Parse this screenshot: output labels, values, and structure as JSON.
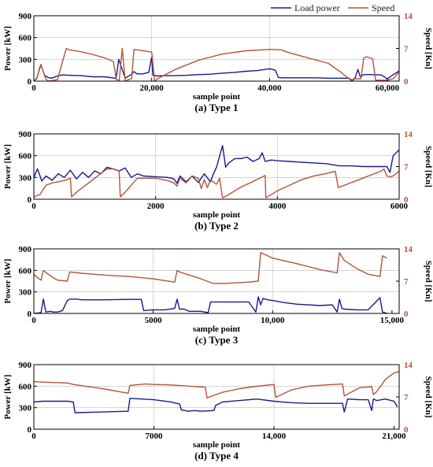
{
  "colors": {
    "load_power": "#1a1a8c",
    "speed": "#b5543a",
    "grid": "#bdbdbd"
  },
  "legend": {
    "load_power": "Load power",
    "speed": "Speed"
  },
  "chart_data": [
    {
      "type": "line",
      "caption": "(a) Type 1",
      "xlabel": "sample point",
      "ylabel": "Power [kW]",
      "y2label": "Speed [Kn]",
      "xlim": [
        0,
        62000
      ],
      "ylim": [
        0,
        900
      ],
      "y2lim": [
        0,
        14
      ],
      "xticks": [
        0,
        20000,
        40000,
        60000
      ],
      "xtick_labels": [
        "0",
        "20,000",
        "40,000",
        "60,000"
      ],
      "yticks": [
        0,
        300,
        600,
        900
      ],
      "y2ticks": [
        0,
        7,
        14
      ],
      "grid": true,
      "series": [
        {
          "name": "Load power",
          "axis": "left",
          "x": [
            0,
            500,
            1200,
            1800,
            2400,
            3000,
            4000,
            4500,
            5000,
            6000,
            8000,
            10000,
            12000,
            13800,
            14000,
            14400,
            15500,
            16500,
            17000,
            17500,
            18500,
            19500,
            20000,
            20200,
            21000,
            22000,
            24000,
            26000,
            28000,
            30000,
            32000,
            34000,
            36000,
            38000,
            40000,
            41000,
            41500,
            42000,
            45000,
            48000,
            50000,
            52000,
            53500,
            54000,
            54500,
            55000,
            55400,
            56000,
            57000,
            59000,
            60000,
            61000,
            62000
          ],
          "y": [
            0,
            40,
            230,
            80,
            50,
            40,
            70,
            80,
            85,
            80,
            75,
            60,
            60,
            40,
            60,
            300,
            40,
            90,
            130,
            100,
            100,
            120,
            330,
            80,
            70,
            75,
            75,
            80,
            90,
            95,
            110,
            120,
            135,
            145,
            170,
            150,
            50,
            45,
            45,
            45,
            40,
            40,
            40,
            10,
            40,
            160,
            60,
            90,
            90,
            85,
            30,
            90,
            140
          ]
        },
        {
          "name": "Speed",
          "axis": "right",
          "x": [
            0,
            500,
            1000,
            1200,
            2000,
            2500,
            4000,
            5500,
            6000,
            8000,
            10000,
            12000,
            13500,
            14000,
            14500,
            15000,
            15500,
            16000,
            16600,
            17000,
            20000,
            20500,
            21000,
            24000,
            28000,
            32000,
            36000,
            40000,
            42000,
            43000,
            45000,
            50000,
            52000,
            53500,
            54000,
            54500,
            55500,
            56000,
            56500,
            57500,
            58000,
            59000,
            60000,
            61000,
            62000
          ],
          "y": [
            0,
            0.5,
            3,
            3.5,
            0.5,
            0,
            0.3,
            7,
            6.7,
            6.3,
            5.7,
            5,
            4.2,
            0.3,
            0.2,
            7,
            0,
            0.3,
            0.5,
            6.8,
            6.2,
            0,
            0.5,
            2.5,
            4.5,
            5.8,
            6.5,
            6.8,
            6.7,
            6.2,
            5.5,
            3.8,
            2,
            0.5,
            0,
            0.5,
            0.5,
            5,
            5.2,
            4.8,
            0.2,
            0.2,
            0.2,
            0.5,
            2
          ]
        }
      ]
    },
    {
      "type": "line",
      "caption": "(b)  Type 2",
      "xlabel": "sample point",
      "ylabel": "Power [kW]",
      "y2label": "Speed [Kn]",
      "xlim": [
        0,
        6000
      ],
      "ylim": [
        0,
        900
      ],
      "y2lim": [
        0,
        14
      ],
      "xticks": [
        0,
        2000,
        4000,
        6000
      ],
      "xtick_labels": [
        "0",
        "2000",
        "4000",
        "6000"
      ],
      "yticks": [
        0,
        300,
        600,
        900
      ],
      "y2ticks": [
        0,
        7,
        14
      ],
      "grid": true,
      "series": [
        {
          "name": "Load power",
          "axis": "left",
          "x": [
            0,
            60,
            130,
            200,
            300,
            400,
            500,
            600,
            700,
            800,
            900,
            1000,
            1100,
            1200,
            1300,
            1400,
            1500,
            1600,
            1700,
            1800,
            2000,
            2200,
            2300,
            2350,
            2400,
            2500,
            2600,
            2700,
            2800,
            2900,
            2950,
            3000,
            3100,
            3150,
            3200,
            3300,
            3400,
            3500,
            3600,
            3700,
            3750,
            3800,
            3900,
            4000,
            4200,
            4400,
            4600,
            4800,
            4950,
            5000,
            5200,
            5400,
            5600,
            5800,
            5850,
            5900,
            6000
          ],
          "y": [
            300,
            420,
            250,
            320,
            260,
            350,
            300,
            400,
            280,
            370,
            300,
            390,
            350,
            440,
            420,
            390,
            430,
            300,
            350,
            320,
            310,
            300,
            280,
            220,
            320,
            240,
            320,
            230,
            350,
            240,
            350,
            440,
            740,
            440,
            500,
            560,
            560,
            580,
            520,
            560,
            640,
            520,
            540,
            530,
            520,
            510,
            500,
            490,
            470,
            460,
            460,
            450,
            450,
            450,
            370,
            600,
            680
          ]
        },
        {
          "name": "Speed",
          "axis": "right",
          "x": [
            0,
            100,
            200,
            300,
            500,
            600,
            620,
            700,
            800,
            900,
            1000,
            1100,
            1200,
            1300,
            1400,
            1420,
            1500,
            1600,
            1700,
            2000,
            2200,
            2300,
            2350,
            2400,
            2500,
            2600,
            2700,
            2750,
            2800,
            2850,
            2900,
            3000,
            3050,
            3100,
            3200,
            3300,
            3400,
            3600,
            3800,
            3810,
            4000,
            4200,
            4400,
            4600,
            4800,
            4950,
            5000,
            5200,
            5400,
            5600,
            5700,
            5750,
            5800,
            5850,
            5900,
            6000
          ],
          "y": [
            0.5,
            1,
            3,
            3.5,
            4,
            4.5,
            0.5,
            1.5,
            2.5,
            3.5,
            4.5,
            5.5,
            6.5,
            6.5,
            6,
            0.5,
            1.5,
            3,
            4.5,
            4.5,
            4,
            3.5,
            2.8,
            4.5,
            3.5,
            5,
            4.5,
            2.3,
            4.2,
            2.5,
            4.2,
            3.2,
            4.5,
            0.3,
            1,
            1.8,
            2.6,
            3.8,
            5.1,
            0.3,
            1.8,
            3,
            4.2,
            5,
            5.5,
            6,
            2.5,
            3.5,
            4.5,
            5.5,
            6,
            6.5,
            5,
            4.8,
            5,
            6
          ]
        }
      ]
    },
    {
      "type": "line",
      "caption": "(c)  Type 3",
      "xlabel": "sample point",
      "ylabel": "Power [kW]",
      "y2label": "Speed [Kn]",
      "xlim": [
        0,
        15300
      ],
      "ylim": [
        0,
        900
      ],
      "y2lim": [
        0,
        14
      ],
      "xticks": [
        0,
        5000,
        10000,
        15000
      ],
      "xtick_labels": [
        "0",
        "5000",
        "10,000",
        "15,000"
      ],
      "yticks": [
        0,
        300,
        600,
        900
      ],
      "y2ticks": [
        0,
        7,
        14
      ],
      "grid": true,
      "series": [
        {
          "name": "Load power",
          "axis": "left",
          "x": [
            0,
            300,
            400,
            500,
            700,
            800,
            1000,
            1200,
            1400,
            1500,
            1800,
            2000,
            3000,
            4000,
            4500,
            4600,
            5000,
            5500,
            5900,
            6000,
            6100,
            6300,
            6500,
            7000,
            7300,
            7400,
            8000,
            8500,
            9000,
            9300,
            9400,
            9500,
            9600,
            9800,
            10000,
            10500,
            11000,
            12000,
            12500,
            12700,
            12800,
            12900,
            13000,
            13500,
            14000,
            14500,
            14600,
            14800
          ],
          "y": [
            0,
            10,
            200,
            20,
            30,
            20,
            20,
            40,
            180,
            200,
            200,
            190,
            190,
            195,
            195,
            40,
            50,
            50,
            70,
            200,
            60,
            60,
            30,
            30,
            10,
            160,
            160,
            160,
            160,
            20,
            230,
            120,
            210,
            190,
            180,
            150,
            130,
            110,
            120,
            20,
            200,
            70,
            60,
            50,
            50,
            220,
            20,
            0
          ]
        },
        {
          "name": "Speed",
          "axis": "right",
          "x": [
            0,
            100,
            300,
            400,
            600,
            800,
            900,
            1000,
            1400,
            1500,
            2000,
            3000,
            4000,
            5000,
            5900,
            6000,
            6100,
            7000,
            7500,
            8000,
            9000,
            9400,
            9500,
            10000,
            11000,
            12000,
            12700,
            12800,
            13000,
            13500,
            14000,
            14500,
            14600,
            14800
          ],
          "y": [
            8.5,
            8,
            7.2,
            9.3,
            8.5,
            7.8,
            7.5,
            7.2,
            7,
            9,
            8.7,
            8.3,
            8,
            7.5,
            6.8,
            9.3,
            9,
            7.5,
            6.5,
            6.5,
            6.8,
            7,
            13.2,
            12,
            10.8,
            9.5,
            8.8,
            13.2,
            11.5,
            9.8,
            8.5,
            8,
            12.5,
            12
          ]
        }
      ]
    },
    {
      "type": "line",
      "caption": "(d)  Type 4",
      "xlabel": "sample point",
      "ylabel": "Power [kW]",
      "y2label": "Speed [Kn]",
      "xlim": [
        0,
        21300
      ],
      "ylim": [
        0,
        900
      ],
      "y2lim": [
        0,
        14
      ],
      "xticks": [
        0,
        7000,
        14000,
        21000
      ],
      "xtick_labels": [
        "0",
        "7000",
        "14,000",
        "21,000"
      ],
      "yticks": [
        0,
        300,
        600,
        900
      ],
      "y2ticks": [
        0,
        7,
        14
      ],
      "grid": true,
      "series": [
        {
          "name": "Load power",
          "axis": "left",
          "x": [
            0,
            500,
            2000,
            2300,
            2400,
            4000,
            5500,
            5600,
            7000,
            8000,
            8500,
            8600,
            9000,
            9400,
            9700,
            10500,
            10600,
            11000,
            12000,
            13000,
            14000,
            14500,
            15000,
            16000,
            17000,
            18000,
            18100,
            18300,
            19000,
            19500,
            19700,
            19800,
            20000,
            20500,
            21000,
            21200
          ],
          "y": [
            380,
            390,
            390,
            380,
            230,
            240,
            250,
            430,
            410,
            380,
            350,
            270,
            250,
            260,
            250,
            260,
            330,
            380,
            400,
            420,
            390,
            380,
            370,
            360,
            360,
            360,
            240,
            420,
            410,
            410,
            260,
            420,
            400,
            420,
            390,
            310
          ]
        },
        {
          "name": "Speed",
          "axis": "right",
          "x": [
            0,
            2000,
            2300,
            4000,
            5500,
            5600,
            6500,
            7000,
            8000,
            10000,
            10100,
            11000,
            12000,
            13000,
            14000,
            14100,
            15000,
            16000,
            17000,
            18000,
            18100,
            19000,
            19700,
            19800,
            20000,
            20500,
            21000,
            21300
          ],
          "y": [
            10.3,
            10,
            9.7,
            8.8,
            7.8,
            9.5,
            9.8,
            9.7,
            9.6,
            9.1,
            6.8,
            8,
            8.8,
            9.3,
            9.7,
            6.9,
            8.5,
            9.3,
            9.6,
            9.8,
            7.2,
            9,
            9.2,
            7.5,
            8.2,
            10.8,
            12.2,
            12.5
          ]
        }
      ]
    }
  ]
}
